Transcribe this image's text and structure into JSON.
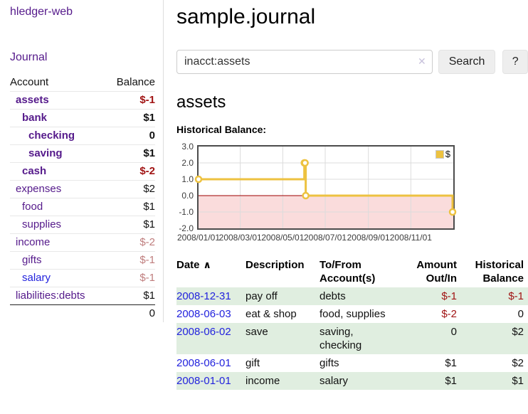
{
  "app": {
    "title": "hledger-web",
    "nav_journal": "Journal"
  },
  "sidebar": {
    "header": {
      "account": "Account",
      "balance": "Balance"
    },
    "accounts": [
      {
        "name": "assets",
        "indent": 0,
        "bold": true,
        "balance": "$-1",
        "balance_class": "neg-strong"
      },
      {
        "name": "bank",
        "indent": 1,
        "bold": true,
        "balance": "$1",
        "balance_class": "pos-strong"
      },
      {
        "name": "checking",
        "indent": 2,
        "bold": true,
        "balance": "0",
        "balance_class": "pos-strong"
      },
      {
        "name": "saving",
        "indent": 2,
        "bold": true,
        "balance": "$1",
        "balance_class": "pos-strong"
      },
      {
        "name": "cash",
        "indent": 1,
        "bold": true,
        "balance": "$-2",
        "balance_class": "neg-strong"
      },
      {
        "name": "expenses",
        "indent": 0,
        "bold": false,
        "balance": "$2",
        "balance_class": "pos"
      },
      {
        "name": "food",
        "indent": 1,
        "bold": false,
        "balance": "$1",
        "balance_class": "pos"
      },
      {
        "name": "supplies",
        "indent": 1,
        "bold": false,
        "balance": "$1",
        "balance_class": "pos"
      },
      {
        "name": "income",
        "indent": 0,
        "bold": false,
        "balance": "$-2",
        "balance_class": "neg-soft"
      },
      {
        "name": "gifts",
        "indent": 1,
        "bold": false,
        "balance": "$-1",
        "balance_class": "neg-soft"
      },
      {
        "name": "salary",
        "indent": 1,
        "bold": false,
        "balance": "$-1",
        "balance_class": "neg-soft",
        "link_color": "blue"
      },
      {
        "name": "liabilities:debts",
        "indent": 0,
        "bold": false,
        "balance": "$1",
        "balance_class": "pos"
      }
    ],
    "total": "0"
  },
  "page": {
    "title": "sample.journal",
    "account_heading": "assets",
    "chart_label": "Historical Balance:"
  },
  "search": {
    "value": "inacct:assets",
    "clear_icon": "✕",
    "button": "Search",
    "help": "?"
  },
  "chart_data": {
    "type": "line",
    "step": true,
    "title": "Historical Balance:",
    "series": [
      {
        "name": "$",
        "color": "#edc240",
        "points": [
          {
            "date": "2008-01-01",
            "day": 0,
            "value": 1
          },
          {
            "date": "2008-06-01",
            "day": 152,
            "value": 2
          },
          {
            "date": "2008-06-02",
            "day": 153,
            "value": 2
          },
          {
            "date": "2008-06-03",
            "day": 154,
            "value": 0
          },
          {
            "date": "2008-12-31",
            "day": 365,
            "value": -1
          }
        ]
      }
    ],
    "ylim": [
      -2,
      3
    ],
    "yticks": [
      {
        "value": 3,
        "label": "3.0"
      },
      {
        "value": 2,
        "label": "2.0"
      },
      {
        "value": 1,
        "label": "1.0"
      },
      {
        "value": 0,
        "label": "0.0"
      },
      {
        "value": -1,
        "label": "-1.0"
      },
      {
        "value": -2,
        "label": "-2.0"
      }
    ],
    "xticks": [
      {
        "day": 0,
        "label": "2008/01/01"
      },
      {
        "day": 60,
        "label": "2008/03/01"
      },
      {
        "day": 121,
        "label": "2008/05/01"
      },
      {
        "day": 182,
        "label": "2008/07/01"
      },
      {
        "day": 244,
        "label": "2008/09/01"
      },
      {
        "day": 305,
        "label": "2008/11/01"
      }
    ],
    "x_days_total": 366,
    "grid": true,
    "legend_position": "top-right",
    "negative_region_color": "#fadcdc",
    "zero_line_color": "#9d0000",
    "gridline_color": "#dcdcdc"
  },
  "register": {
    "sort_icon": "∧",
    "columns": [
      {
        "label": "Date"
      },
      {
        "label": "Description"
      },
      {
        "label": "To/From\nAccount(s)"
      },
      {
        "label": "Amount\nOut/In"
      },
      {
        "label": "Historical\nBalance"
      }
    ],
    "rows": [
      {
        "date": "2008-12-31",
        "description": "pay off",
        "accounts": "debts",
        "amount": "$-1",
        "amount_negative": true,
        "balance": "$-1",
        "balance_negative": true
      },
      {
        "date": "2008-06-03",
        "description": "eat & shop",
        "accounts": "food, supplies",
        "amount": "$-2",
        "amount_negative": true,
        "balance": "0",
        "balance_negative": false
      },
      {
        "date": "2008-06-02",
        "description": "save",
        "accounts": "saving,\nchecking",
        "amount": "0",
        "amount_negative": false,
        "balance": "$2",
        "balance_negative": false
      },
      {
        "date": "2008-06-01",
        "description": "gift",
        "accounts": "gifts",
        "amount": "$1",
        "amount_negative": false,
        "balance": "$2",
        "balance_negative": false
      },
      {
        "date": "2008-01-01",
        "description": "income",
        "accounts": "salary",
        "amount": "$1",
        "amount_negative": false,
        "balance": "$1",
        "balance_negative": false
      }
    ]
  },
  "colors": {
    "accent_purple": "#551a8b",
    "link_blue": "#2222dd",
    "negative_red": "#a11414",
    "negative_soft": "#bf7d7d",
    "row_green": "#e0eee0",
    "chart_negative_pink": "#fadcdc",
    "series_yellow": "#edc240"
  }
}
